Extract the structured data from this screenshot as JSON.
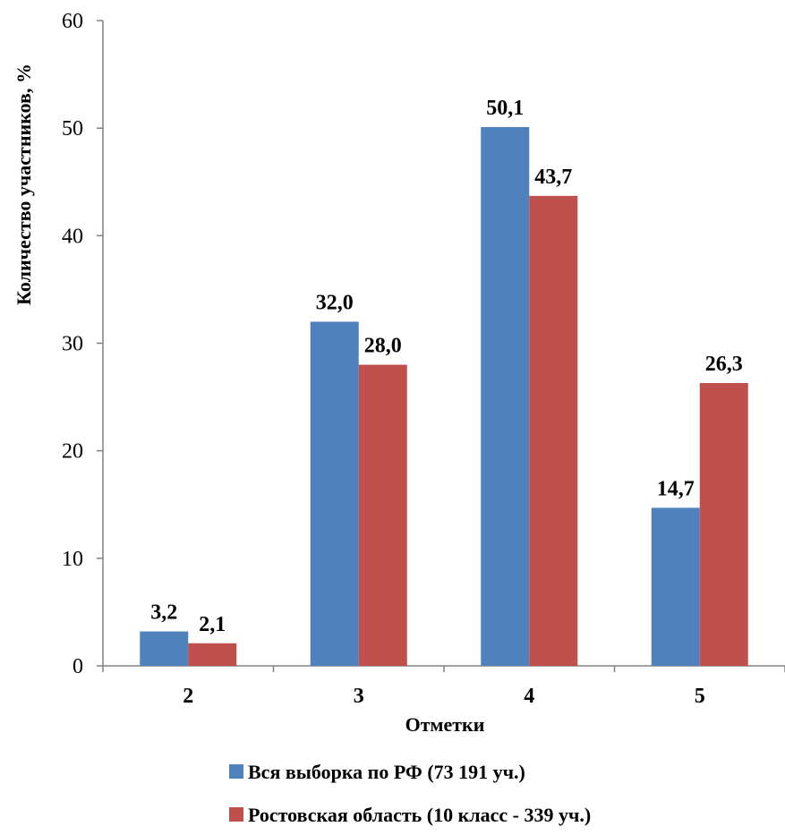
{
  "chart_data": {
    "type": "bar",
    "xlabel": "Отметки",
    "ylabel": "Количество участников, %",
    "ylim": [
      0,
      60
    ],
    "yticks": [
      0,
      10,
      20,
      30,
      40,
      50,
      60
    ],
    "categories": [
      "2",
      "3",
      "4",
      "5"
    ],
    "series": [
      {
        "name": "Вся выборка по РФ (73 191 уч.)",
        "color": "#4F81BD",
        "values": [
          3.2,
          32.0,
          50.1,
          14.7
        ],
        "labels": [
          "3,2",
          "32,0",
          "50,1",
          "14,7"
        ]
      },
      {
        "name": "Ростовская область (10 класс - 339 уч.)",
        "color": "#C0504D",
        "values": [
          2.1,
          28.0,
          43.7,
          26.3
        ],
        "labels": [
          "2,1",
          "28,0",
          "43,7",
          "26,3"
        ]
      }
    ],
    "grid": false,
    "legend_position": "bottom"
  }
}
